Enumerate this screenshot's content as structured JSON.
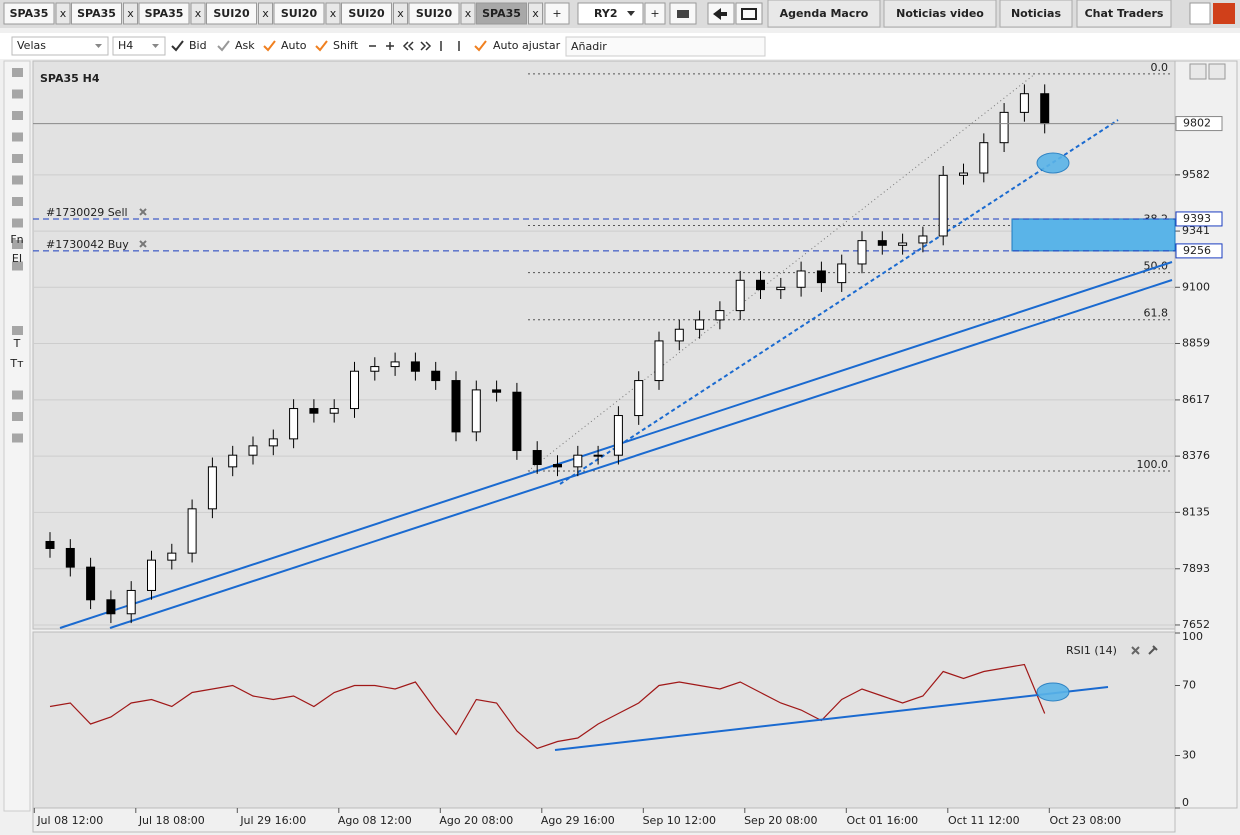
{
  "tabs": [
    "SPA35",
    "SPA35",
    "SPA35",
    "SUI20",
    "SUI20",
    "SUI20",
    "SUI20",
    "SPA35"
  ],
  "close": "x",
  "new_tab": "+",
  "template": "RY2",
  "side_tabs": [
    "Agenda Macro",
    "Noticias video",
    "Noticias",
    "Chat Traders"
  ],
  "toolbar": {
    "chart_type": "Velas",
    "timeframe": "H4",
    "options": [
      "Bid",
      "Ask",
      "Auto",
      "Shift"
    ],
    "autofit": "Auto ajustar",
    "add": "Añadir"
  },
  "tools": [
    "Fn",
    "EI",
    "T",
    "Tт"
  ],
  "chart_data": [
    {
      "type": "candlestick",
      "title": "SPA35 H4",
      "categories": [
        null,
        "Jul 08 12:00",
        null,
        null,
        null,
        null,
        "Jul 18 08:00",
        null,
        null,
        null,
        null,
        "Jul 29 16:00",
        null,
        null,
        null,
        null,
        "Ago 08 12:00",
        null,
        null,
        null,
        null,
        "Ago 20 08:00",
        null,
        null,
        null,
        null,
        "Ago 29 16:00",
        null,
        null,
        null,
        null,
        "Sep 10 12:00",
        null,
        null,
        null,
        null,
        "Sep 20 08:00",
        null,
        null,
        null,
        null,
        "Oct 01 16:00",
        null,
        null,
        null,
        null,
        "Oct 11 12:00",
        null,
        null,
        null,
        null,
        "Oct 23 08:00"
      ],
      "open": [
        8010,
        7980,
        7900,
        7760,
        7700,
        7800,
        7930,
        7960,
        8150,
        8330,
        8380,
        8420,
        8450,
        8580,
        8560,
        8580,
        8740,
        8760,
        8780,
        8740,
        8700,
        8480,
        8660,
        8650,
        8400,
        8340,
        8330,
        8380,
        8380,
        8550,
        8700,
        8870,
        8920,
        8960,
        9000,
        9130,
        9090,
        9100,
        9170,
        9120,
        9200,
        9300,
        9280,
        9290,
        9320,
        9580,
        9590,
        9720,
        9850,
        9930,
        null,
        null
      ],
      "high": [
        8050,
        8020,
        7940,
        7800,
        7840,
        7970,
        8000,
        8190,
        8370,
        8420,
        8460,
        8490,
        8620,
        8620,
        8620,
        8780,
        8800,
        8820,
        8820,
        8780,
        8740,
        8700,
        8700,
        8690,
        8440,
        8380,
        8420,
        8420,
        8590,
        8740,
        8910,
        8960,
        9000,
        9040,
        9170,
        9170,
        9140,
        9210,
        9210,
        9240,
        9340,
        9340,
        9330,
        9360,
        9620,
        9630,
        9760,
        9890,
        9970,
        9970,
        null,
        null
      ],
      "low": [
        7940,
        7860,
        7720,
        7660,
        7660,
        7760,
        7890,
        7920,
        8110,
        8290,
        8340,
        8380,
        8410,
        8520,
        8520,
        8540,
        8700,
        8720,
        8700,
        8660,
        8440,
        8440,
        8610,
        8360,
        8300,
        8290,
        8290,
        8340,
        8340,
        8510,
        8660,
        8830,
        8880,
        8920,
        8960,
        9050,
        9050,
        9060,
        9080,
        9080,
        9160,
        9240,
        9240,
        9250,
        9280,
        9540,
        9550,
        9680,
        9810,
        9760,
        null,
        null
      ],
      "close": [
        7980,
        7900,
        7760,
        7700,
        7800,
        7930,
        7960,
        8150,
        8330,
        8380,
        8420,
        8450,
        8580,
        8560,
        8580,
        8740,
        8760,
        8780,
        8740,
        8700,
        8480,
        8660,
        8650,
        8400,
        8340,
        8330,
        8380,
        8380,
        8550,
        8700,
        8870,
        8920,
        8960,
        9000,
        9130,
        9090,
        9100,
        9170,
        9120,
        9200,
        9300,
        9280,
        9290,
        9320,
        9580,
        9590,
        9720,
        9850,
        9930,
        9802,
        null,
        null
      ],
      "up_color": "#ffffff",
      "down_color": "#000000",
      "ylim": [
        7639,
        10066
      ],
      "yticks": [
        9582,
        9341,
        9100,
        8859,
        8617,
        8376,
        8135,
        7893,
        7652
      ],
      "grid": true,
      "orders": [
        {
          "label": "#1730029 Sell",
          "price": 9393
        },
        {
          "label": "#1730042 Buy",
          "price": 9256
        }
      ],
      "fibonacci": {
        "levels": [
          "0.0",
          "38.2",
          "50.0",
          "61.8",
          "100.0"
        ],
        "prices": [
          10015,
          9365,
          9163,
          8961,
          8312
        ]
      }
    },
    {
      "type": "line",
      "title": "RSI1 (14)",
      "values": [
        58,
        60,
        48,
        52,
        60,
        62,
        58,
        66,
        68,
        70,
        64,
        62,
        64,
        58,
        66,
        70,
        70,
        68,
        72,
        56,
        42,
        62,
        60,
        44,
        34,
        38,
        40,
        48,
        54,
        60,
        70,
        72,
        70,
        68,
        72,
        66,
        60,
        56,
        50,
        62,
        68,
        64,
        60,
        64,
        78,
        74,
        78,
        80,
        82,
        54,
        null,
        null
      ],
      "color": "#a01818",
      "ylim": [
        0,
        100
      ],
      "yticks": [
        100,
        70,
        30,
        0
      ]
    }
  ]
}
